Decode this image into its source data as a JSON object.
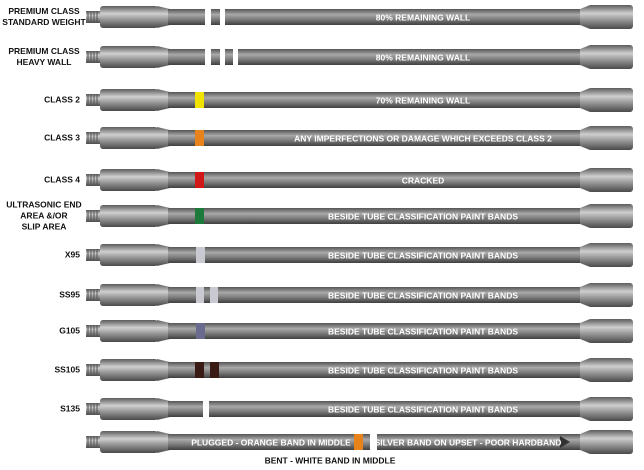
{
  "rows": [
    {
      "label": [
        "PREMIUM CLASS",
        "STANDARD WEIGHT"
      ],
      "text": "80% REMAINING WALL"
    },
    {
      "label": [
        "PREMIUM CLASS",
        "HEAVY WALL"
      ],
      "text": "80% REMAINING WALL"
    },
    {
      "label": [
        "CLASS 2"
      ],
      "text": "70% REMAINING WALL"
    },
    {
      "label": [
        "CLASS 3"
      ],
      "text": "ANY IMPERFECTIONS OR DAMAGE WHICH EXCEEDS CLASS 2"
    },
    {
      "label": [
        "CLASS 4"
      ],
      "text": "CRACKED"
    },
    {
      "label": [
        "ULTRASONIC END",
        "AREA &/OR",
        "SLIP AREA"
      ],
      "text": "BESIDE TUBE CLASSIFICATION PAINT BANDS"
    },
    {
      "label": [
        "X95"
      ],
      "text": "BESIDE TUBE CLASSIFICATION PAINT BANDS"
    },
    {
      "label": [
        "SS95"
      ],
      "text": "BESIDE TUBE CLASSIFICATION PAINT BANDS"
    },
    {
      "label": [
        "G105"
      ],
      "text": "BESIDE TUBE CLASSIFICATION PAINT BANDS"
    },
    {
      "label": [
        "SS105"
      ],
      "text": "BESIDE TUBE CLASSIFICATION PAINT BANDS"
    },
    {
      "label": [
        "S135"
      ],
      "text": "BESIDE TUBE CLASSIFICATION PAINT BANDS"
    }
  ],
  "last_row": {
    "left_text": "PLUGGED - ORANGE BAND IN MIDDLE",
    "right_text": "SILVER BAND ON UPSET - POOR HARDBAND",
    "caption": "BENT - WHITE BAND IN MIDDLE"
  }
}
